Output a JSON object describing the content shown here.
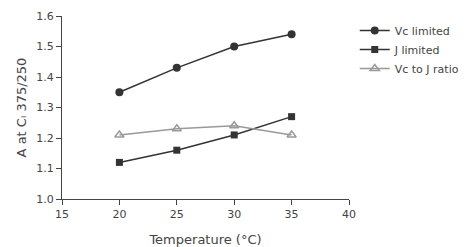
{
  "chart_data": {
    "type": "line",
    "x": [
      20,
      25,
      30,
      35
    ],
    "series": [
      {
        "name": "Vc limited",
        "color": "#333333",
        "marker": "circle",
        "values": [
          1.35,
          1.43,
          1.5,
          1.54
        ]
      },
      {
        "name": "J limited",
        "color": "#333333",
        "marker": "square",
        "values": [
          1.12,
          1.16,
          1.21,
          1.27
        ]
      },
      {
        "name": "Vc to J ratio",
        "color": "#999999",
        "marker": "triangle-open",
        "values": [
          1.21,
          1.23,
          1.24,
          1.21
        ]
      }
    ],
    "xlabel": "Temperature (°C)",
    "ylabel": "A at Cᵢ 375/250",
    "xlim": [
      15,
      40
    ],
    "ylim": [
      1.0,
      1.6
    ],
    "xticks": [
      15,
      20,
      25,
      30,
      35,
      40
    ],
    "yticks": [
      {
        "value": 1.0,
        "label": "1.0"
      },
      1.1,
      1.2,
      1.3,
      1.4,
      1.5,
      1.6
    ],
    "grid": false,
    "legend": "right"
  }
}
